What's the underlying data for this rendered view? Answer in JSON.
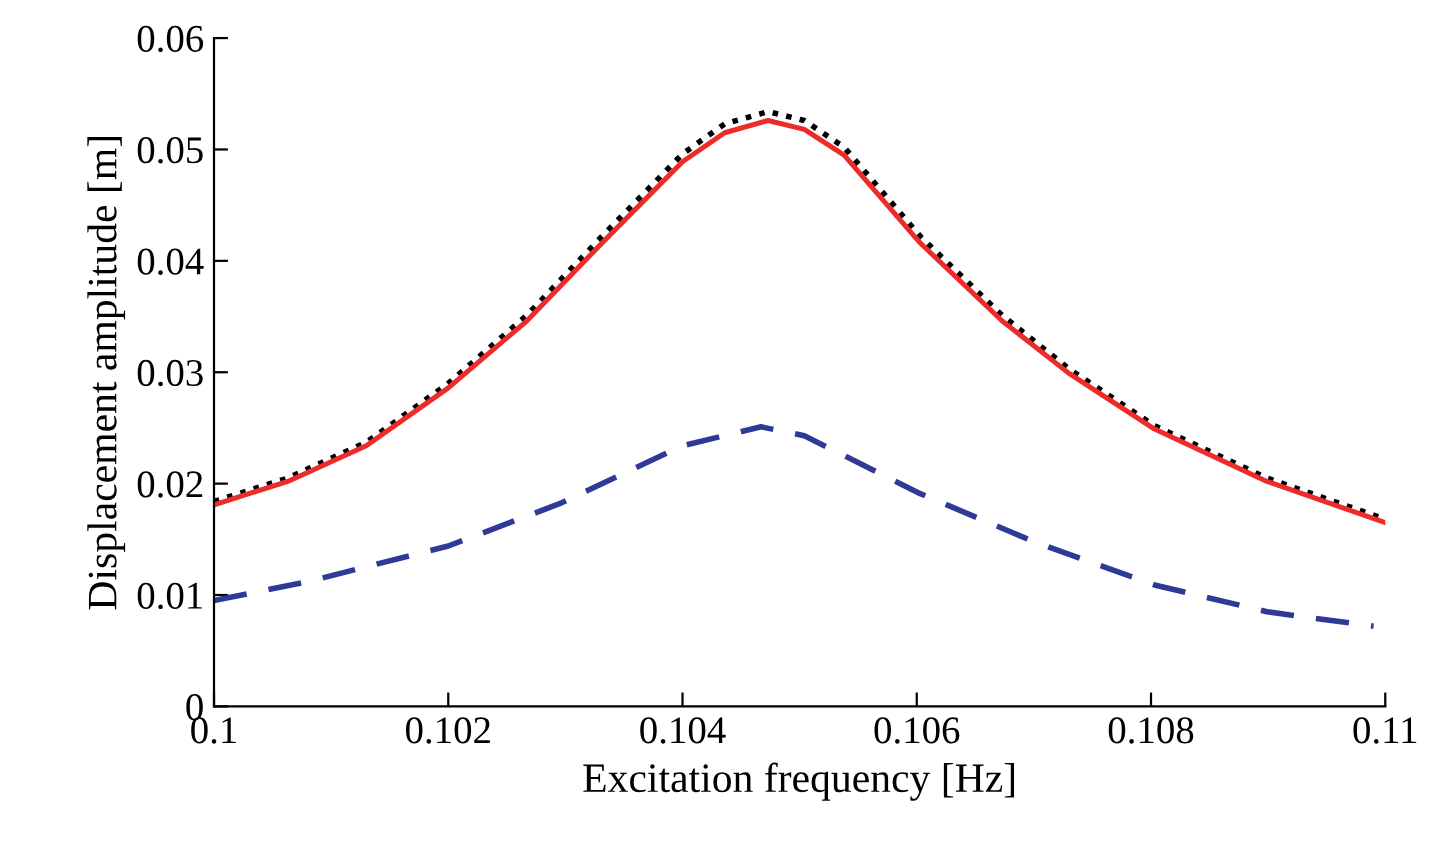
{
  "chart_data": {
    "type": "line",
    "xlabel": "Excitation frequency [Hz]",
    "ylabel": "Displacement amplitude [m]",
    "xlim": [
      0.1,
      0.11
    ],
    "xticks": [
      0.1,
      0.102,
      0.104,
      0.106,
      0.108,
      0.11
    ],
    "ylim": [
      0,
      0.06
    ],
    "yticks": [
      0,
      0.01,
      0.02,
      0.03,
      0.04,
      0.05,
      0.06
    ],
    "grid": false,
    "legend": false,
    "series": [
      {
        "color": "#000000",
        "line_style": "dotted",
        "x": [
          0.1,
          0.10063,
          0.1013,
          0.102,
          0.10267,
          0.10334,
          0.104,
          0.10436,
          0.10473,
          0.10504,
          0.10538,
          0.10603,
          0.10673,
          0.1073,
          0.10803,
          0.10899,
          0.11
        ],
        "values": [
          0.0184,
          0.0205,
          0.0237,
          0.029,
          0.0351,
          0.0425,
          0.0496,
          0.0523,
          0.0534,
          0.0526,
          0.0502,
          0.0422,
          0.0351,
          0.0303,
          0.0252,
          0.0205,
          0.0168
        ]
      },
      {
        "color": "#ee2b2b",
        "line_style": "solid",
        "x": [
          0.1,
          0.10063,
          0.1013,
          0.102,
          0.10267,
          0.10334,
          0.104,
          0.10436,
          0.10473,
          0.10504,
          0.10538,
          0.10603,
          0.10673,
          0.1073,
          0.10803,
          0.10899,
          0.11
        ],
        "values": [
          0.0181,
          0.0202,
          0.0234,
          0.0286,
          0.0346,
          0.0419,
          0.0489,
          0.0515,
          0.0526,
          0.0518,
          0.0495,
          0.0416,
          0.0346,
          0.0299,
          0.0249,
          0.0202,
          0.0165
        ]
      },
      {
        "color": "#2f3a96",
        "line_style": "dashed",
        "x": [
          0.1,
          0.1008,
          0.102,
          0.10295,
          0.104,
          0.10467,
          0.10504,
          0.10603,
          0.10702,
          0.10803,
          0.10899,
          0.1099
        ],
        "values": [
          0.0095,
          0.0112,
          0.0144,
          0.0182,
          0.0234,
          0.0251,
          0.0243,
          0.0191,
          0.0147,
          0.0109,
          0.0085,
          0.0072
        ]
      }
    ]
  }
}
